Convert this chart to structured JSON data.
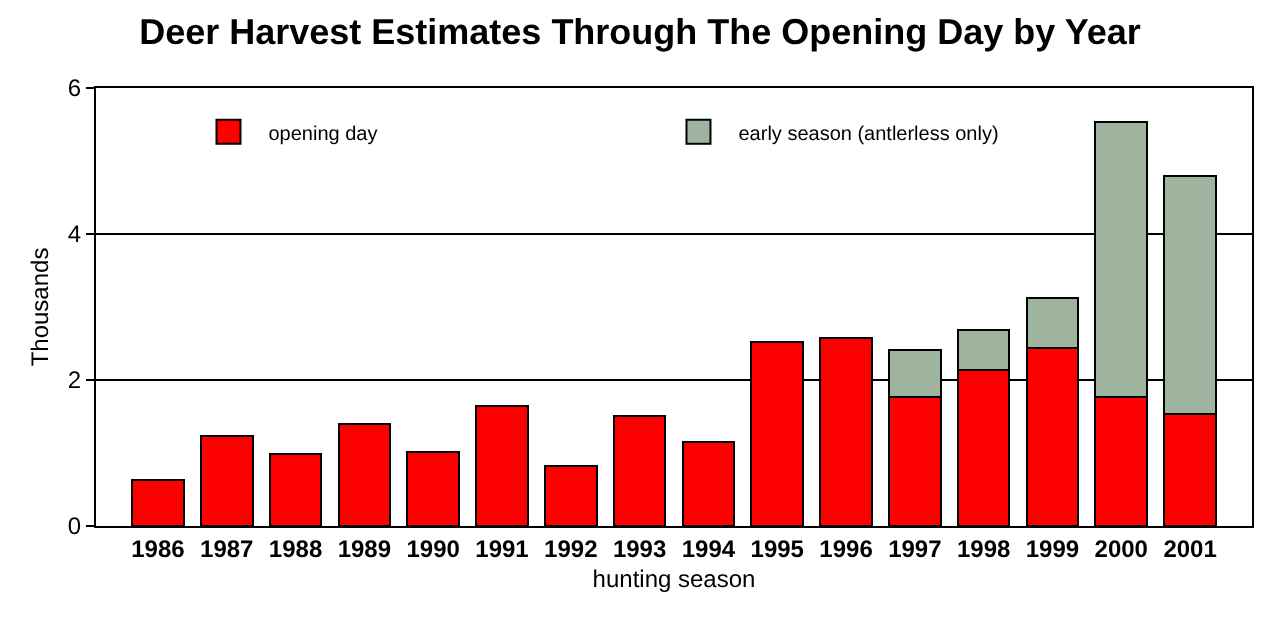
{
  "chart_data": {
    "type": "bar",
    "title": "Deer Harvest Estimates Through The Opening Day by Year",
    "xlabel": "hunting season",
    "ylabel": "Thousands",
    "categories": [
      "1986",
      "1987",
      "1988",
      "1989",
      "1990",
      "1991",
      "1992",
      "1993",
      "1994",
      "1995",
      "1996",
      "1997",
      "1998",
      "1999",
      "2000",
      "2001"
    ],
    "stacked": true,
    "series": [
      {
        "name": "opening day",
        "color": "#ff0000",
        "values": [
          0.63,
          1.23,
          0.99,
          1.4,
          1.01,
          1.64,
          0.82,
          1.51,
          1.15,
          2.52,
          2.58,
          1.77,
          2.14,
          2.44,
          1.77,
          1.53
        ]
      },
      {
        "name": "early season (antlerless only)",
        "color": "#9fb49f",
        "values": [
          null,
          null,
          null,
          null,
          null,
          null,
          null,
          null,
          null,
          null,
          null,
          0.64,
          0.54,
          0.68,
          3.76,
          3.26
        ]
      }
    ],
    "ylim": [
      0,
      6
    ],
    "yticks": [
      0,
      2,
      4,
      6
    ],
    "grid": "y",
    "legend": "top"
  }
}
